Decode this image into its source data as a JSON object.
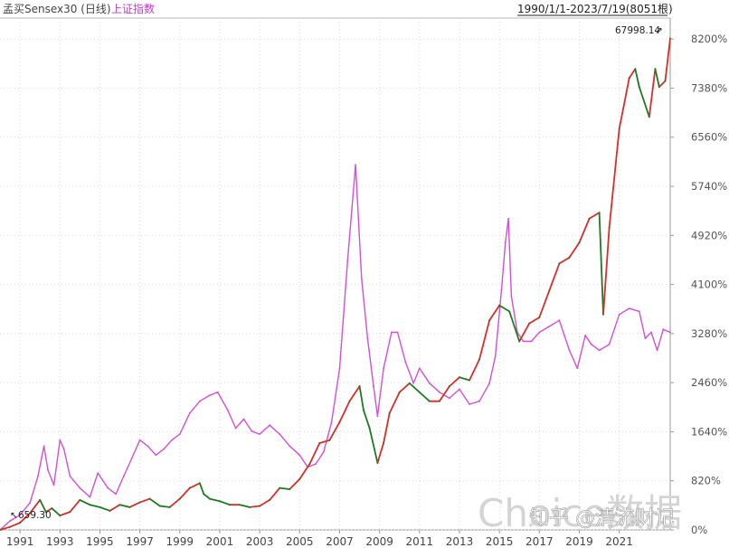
{
  "header": {
    "title_main": "孟买Sensex30 (日线)",
    "title_second": "上证指数",
    "date_range": "1990/1/1-2023/7/19(8051根)"
  },
  "annotations": {
    "max_label": "67998.14",
    "min_label": "659.30"
  },
  "watermark": {
    "primary": "Choice数据",
    "secondary": "知乎 @清流财记"
  },
  "colors": {
    "sensex_up": "#dd2b2b",
    "sensex_down": "#1e7a1e",
    "shanghai": "#d24fd8",
    "grid": "#d9d9d9",
    "axis": "#999999"
  },
  "chart_data": {
    "type": "line",
    "title": "孟买Sensex30 (日线)",
    "xlabel": "",
    "ylabel": "",
    "xlim": [
      1990,
      2023.55
    ],
    "ylim": [
      0,
      8550
    ],
    "y_unit": "%",
    "y_ticks": [
      0,
      820,
      1640,
      2460,
      3280,
      4100,
      4920,
      5740,
      6560,
      7380,
      8200
    ],
    "y_tick_labels": [
      "0%",
      "820%",
      "1640%",
      "2460%",
      "3280%",
      "4100%",
      "4920%",
      "5740%",
      "6560%",
      "7380%",
      "8200%"
    ],
    "x_ticks": [
      1991,
      1993,
      1995,
      1997,
      1999,
      2001,
      2003,
      2005,
      2007,
      2009,
      2011,
      2013,
      2015,
      2017,
      2019,
      2021
    ],
    "x_tick_labels": [
      "1991",
      "1993",
      "1995",
      "1997",
      "1999",
      "2001",
      "2003",
      "2005",
      "2007",
      "2009",
      "2011",
      "2013",
      "2015",
      "2017",
      "2019",
      "2021"
    ],
    "grid": true,
    "legend": "top-left",
    "series": [
      {
        "name": "孟买Sensex30 (日线)",
        "x": [
          1990.0,
          1990.5,
          1991.0,
          1991.5,
          1992.0,
          1992.3,
          1992.6,
          1993.0,
          1993.5,
          1994.0,
          1994.5,
          1995.0,
          1995.5,
          1996.0,
          1996.5,
          1997.0,
          1997.5,
          1998.0,
          1998.5,
          1999.0,
          1999.5,
          2000.0,
          2000.2,
          2000.5,
          2001.0,
          2001.5,
          2002.0,
          2002.5,
          2003.0,
          2003.5,
          2004.0,
          2004.5,
          2005.0,
          2005.5,
          2006.0,
          2006.5,
          2007.0,
          2007.5,
          2008.0,
          2008.2,
          2008.5,
          2008.9,
          2009.2,
          2009.5,
          2010.0,
          2010.5,
          2011.0,
          2011.5,
          2012.0,
          2012.5,
          2013.0,
          2013.5,
          2014.0,
          2014.5,
          2015.0,
          2015.5,
          2016.0,
          2016.5,
          2017.0,
          2017.5,
          2018.0,
          2018.5,
          2019.0,
          2019.5,
          2020.0,
          2020.2,
          2020.5,
          2021.0,
          2021.5,
          2021.8,
          2022.0,
          2022.5,
          2022.8,
          2023.0,
          2023.3,
          2023.55
        ],
        "values": [
          0,
          50,
          120,
          280,
          500,
          300,
          360,
          240,
          300,
          500,
          420,
          380,
          320,
          420,
          380,
          460,
          520,
          400,
          380,
          520,
          700,
          780,
          600,
          520,
          480,
          420,
          420,
          380,
          400,
          500,
          700,
          680,
          850,
          1100,
          1450,
          1500,
          1800,
          2150,
          2400,
          2000,
          1700,
          1120,
          1450,
          1950,
          2300,
          2450,
          2300,
          2150,
          2150,
          2400,
          2550,
          2500,
          2850,
          3500,
          3750,
          3650,
          3150,
          3450,
          3550,
          4000,
          4450,
          4550,
          4800,
          5200,
          5300,
          3600,
          5050,
          6700,
          7550,
          7700,
          7400,
          6900,
          7700,
          7400,
          7500,
          8210
        ]
      },
      {
        "name": "上证指数",
        "x": [
          1990.0,
          1990.5,
          1991.0,
          1991.5,
          1991.9,
          1992.2,
          1992.4,
          1992.7,
          1993.0,
          1993.2,
          1993.5,
          1994.0,
          1994.5,
          1994.9,
          1995.4,
          1995.8,
          1996.2,
          1996.6,
          1997.0,
          1997.4,
          1997.8,
          1998.2,
          1998.6,
          1999.0,
          1999.5,
          2000.0,
          2000.5,
          2000.9,
          2001.4,
          2001.8,
          2002.2,
          2002.6,
          2003.0,
          2003.5,
          2004.0,
          2004.5,
          2005.0,
          2005.4,
          2005.8,
          2006.2,
          2006.6,
          2007.0,
          2007.4,
          2007.8,
          2008.1,
          2008.4,
          2008.7,
          2008.9,
          2009.2,
          2009.6,
          2009.9,
          2010.3,
          2010.7,
          2011.0,
          2011.5,
          2012.0,
          2012.5,
          2013.0,
          2013.5,
          2014.0,
          2014.5,
          2014.8,
          2015.1,
          2015.3,
          2015.45,
          2015.6,
          2015.9,
          2016.2,
          2016.6,
          2017.0,
          2017.5,
          2018.0,
          2018.5,
          2018.9,
          2019.3,
          2019.6,
          2020.0,
          2020.5,
          2021.0,
          2021.5,
          2022.0,
          2022.3,
          2022.6,
          2022.9,
          2023.2,
          2023.55
        ],
        "values": [
          0,
          150,
          250,
          450,
          900,
          1400,
          1000,
          750,
          1500,
          1350,
          900,
          700,
          550,
          950,
          700,
          600,
          900,
          1200,
          1500,
          1400,
          1250,
          1350,
          1500,
          1600,
          1950,
          2150,
          2250,
          2300,
          2000,
          1700,
          1850,
          1650,
          1600,
          1750,
          1600,
          1400,
          1250,
          1050,
          1100,
          1300,
          1800,
          2700,
          4500,
          6100,
          4200,
          3200,
          2400,
          1900,
          2700,
          3300,
          3300,
          2800,
          2450,
          2700,
          2450,
          2300,
          2200,
          2350,
          2100,
          2150,
          2450,
          2900,
          4000,
          4800,
          5200,
          3900,
          3300,
          3150,
          3150,
          3300,
          3400,
          3500,
          3000,
          2700,
          3250,
          3100,
          3000,
          3100,
          3600,
          3700,
          3650,
          3200,
          3300,
          3000,
          3350,
          3300
        ]
      }
    ]
  }
}
